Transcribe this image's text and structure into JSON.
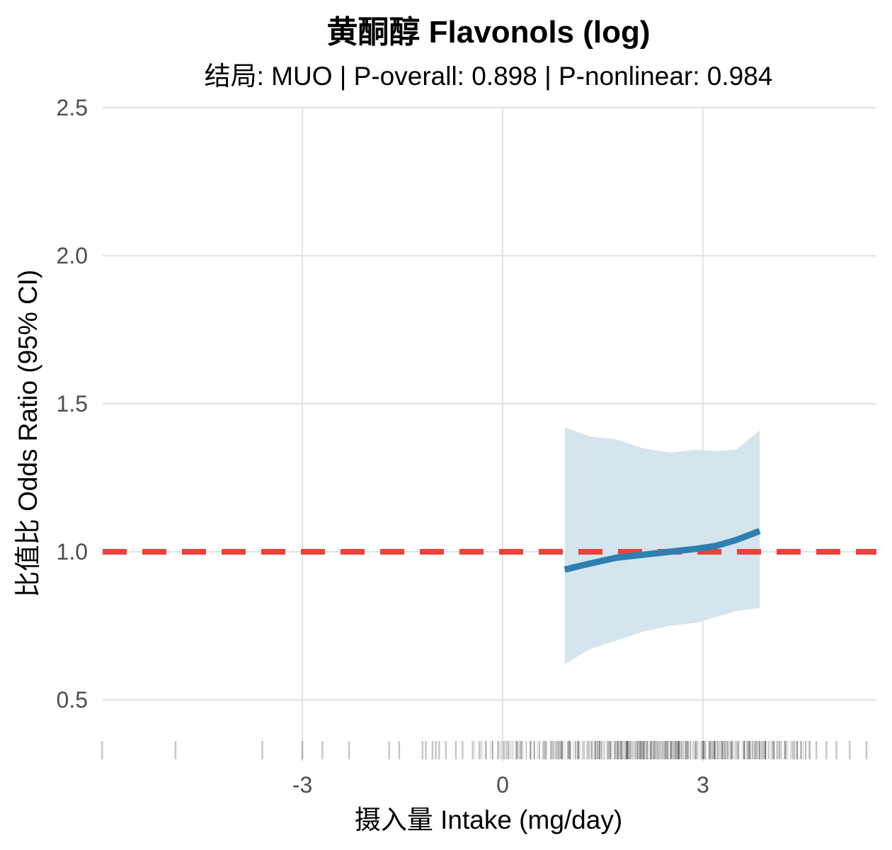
{
  "chart_data": {
    "type": "line",
    "title": "黄酮醇 Flavonols (log)",
    "subtitle": "结局: MUO | P-overall: 0.898 | P-nonlinear: 0.984",
    "xlabel": "摄入量 Intake (mg/day)",
    "ylabel": "比值比 Odds Ratio (95% CI)",
    "xlim": [
      -6.1,
      5.5
    ],
    "ylim": [
      0.32,
      2.5
    ],
    "x_ticks": [
      -3,
      0,
      3
    ],
    "x_tick_labels": [
      "-3",
      "0",
      "3"
    ],
    "y_ticks": [
      0.5,
      1.0,
      1.5,
      2.0,
      2.5
    ],
    "y_tick_labels": [
      "0.5",
      "1.0",
      "1.5",
      "2.0",
      "2.5"
    ],
    "reference_line": {
      "y": 1.0,
      "style": "dashed",
      "color": "#e8433a"
    },
    "grid": true,
    "series": [
      {
        "x": [
          0.93,
          1.3,
          1.7,
          2.1,
          2.5,
          2.9,
          3.2,
          3.5,
          3.85
        ],
        "y": [
          0.94,
          0.96,
          0.98,
          0.99,
          1.0,
          1.01,
          1.02,
          1.04,
          1.07
        ],
        "ci_lower": [
          0.62,
          0.67,
          0.7,
          0.73,
          0.75,
          0.76,
          0.78,
          0.8,
          0.81
        ],
        "ci_upper": [
          1.42,
          1.39,
          1.38,
          1.35,
          1.335,
          1.345,
          1.34,
          1.345,
          1.41
        ],
        "color": "#2f80b0",
        "ci_color": "#d5e5ee"
      }
    ],
    "rug": {
      "sparse_x": [
        -6.0,
        -4.9,
        -3.6,
        -3.0,
        -2.7,
        -2.3,
        -1.7,
        -1.55,
        -1.2,
        -1.15,
        -1.05,
        -1.0,
        -0.95,
        -0.85,
        -0.7,
        -0.6,
        -0.45,
        -0.35,
        -0.25,
        -0.15,
        4.6,
        4.7,
        4.85,
        5.0,
        5.2,
        5.45
      ],
      "dense_range": [
        -0.5,
        4.6
      ],
      "dense_center": 2.6,
      "color": "#000000"
    }
  }
}
